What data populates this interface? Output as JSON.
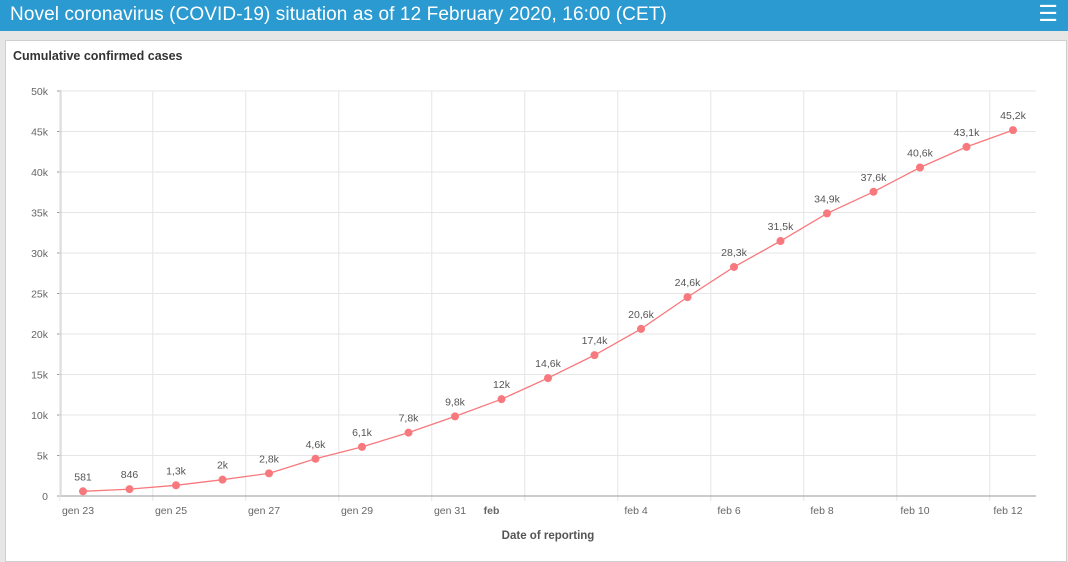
{
  "header": {
    "title": "Novel coronavirus (COVID-19) situation as of 12 February 2020, 16:00 (CET)",
    "menu_icon": "hamburger-menu-icon"
  },
  "colors": {
    "header": "#2a9ad0",
    "series": "#f7797d"
  },
  "chart_data": {
    "type": "line",
    "title": "Cumulative confirmed cases",
    "xlabel": "Date of reporting",
    "ylabel": "",
    "ylim": [
      0,
      50000
    ],
    "y_ticks": [
      0,
      5000,
      10000,
      15000,
      20000,
      25000,
      30000,
      35000,
      40000,
      45000,
      50000
    ],
    "y_tick_labels": [
      "0",
      "5k",
      "10k",
      "15k",
      "20k",
      "25k",
      "30k",
      "35k",
      "40k",
      "45k",
      "50k"
    ],
    "x": [
      "gen 23",
      "gen 24",
      "gen 25",
      "gen 26",
      "gen 27",
      "gen 28",
      "gen 29",
      "gen 30",
      "gen 31",
      "feb 1",
      "feb 2",
      "feb 3",
      "feb 4",
      "feb 5",
      "feb 6",
      "feb 7",
      "feb 8",
      "feb 9",
      "feb 10",
      "feb 11",
      "feb 12"
    ],
    "x_tick_indices": [
      0,
      2,
      4,
      6,
      8,
      9,
      12,
      14,
      16,
      18,
      20
    ],
    "x_tick_labels": [
      "gen 23",
      "gen 25",
      "gen 27",
      "gen 29",
      "gen 31",
      "feb",
      "feb 4",
      "feb 6",
      "feb 8",
      "feb 10",
      "feb 12"
    ],
    "grid": true,
    "legend": "none",
    "series": [
      {
        "name": "Cumulative confirmed cases",
        "values": [
          581,
          846,
          1320,
          2014,
          2798,
          4593,
          6065,
          7818,
          9826,
          11953,
          14557,
          17391,
          20630,
          24554,
          28276,
          31481,
          34886,
          37558,
          40554,
          43103,
          45171
        ],
        "data_labels": [
          "581",
          "846",
          "1,3k",
          "2k",
          "2,8k",
          "4,6k",
          "6,1k",
          "7,8k",
          "9,8k",
          "12k",
          "14,6k",
          "17,4k",
          "20,6k",
          "24,6k",
          "28,3k",
          "31,5k",
          "34,9k",
          "37,6k",
          "40,6k",
          "43,1k",
          "45,2k"
        ]
      }
    ]
  }
}
